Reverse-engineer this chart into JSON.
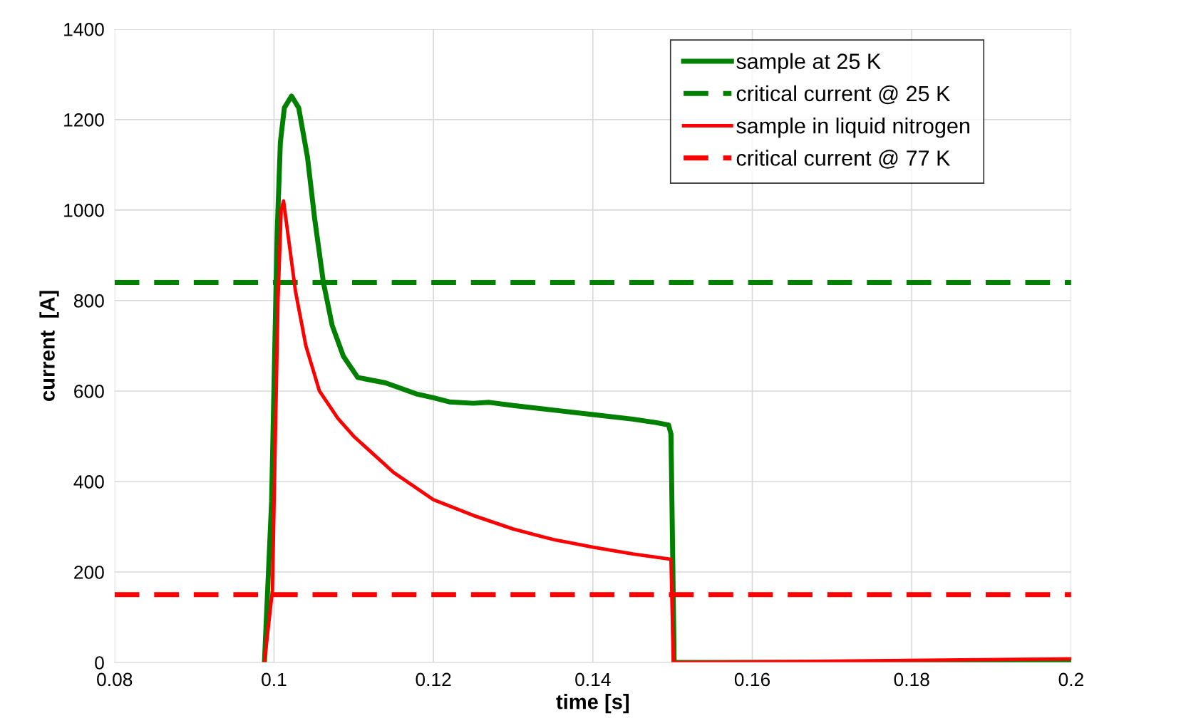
{
  "chart_data": {
    "type": "line",
    "xlabel": "time [s]",
    "ylabel": "current  [A]",
    "xlim": [
      0.08,
      0.2
    ],
    "xticks": [
      0.08,
      0.1,
      0.12,
      0.14,
      0.16,
      0.18,
      0.2
    ],
    "ylim": [
      0,
      1400
    ],
    "yticks": [
      0,
      200,
      400,
      600,
      800,
      1000,
      1200,
      1400
    ],
    "grid": true,
    "legend": "top right",
    "marker": "none",
    "series": [
      {
        "name": "sample at 25 K",
        "color": "#008000",
        "line_style": "solid",
        "x": [
          0.0988,
          0.0997,
          0.1004,
          0.1008,
          0.1013,
          0.1022,
          0.1031,
          0.1042,
          0.1051,
          0.1062,
          0.1073,
          0.1087,
          0.1105,
          0.114,
          0.118,
          0.12,
          0.122,
          0.125,
          0.127,
          0.13,
          0.135,
          0.14,
          0.145,
          0.148,
          0.1495,
          0.1498,
          0.1502,
          0.2
        ],
        "values": [
          0,
          356,
          950,
          1150,
          1226,
          1252,
          1226,
          1117,
          981,
          840,
          745,
          677,
          630,
          618,
          593,
          585,
          576,
          573,
          575,
          568,
          558,
          548,
          538,
          530,
          525,
          505,
          0,
          0
        ]
      },
      {
        "name": "critical current @ 25 K",
        "color": "#008000",
        "line_style": "dashed",
        "x": [
          0.08,
          0.2
        ],
        "values": [
          840,
          840
        ]
      },
      {
        "name": "sample in liquid nitrogen",
        "color": "#ff0000",
        "line_style": "solid",
        "x": [
          0.0988,
          0.0998,
          0.1005,
          0.1009,
          0.1012,
          0.1018,
          0.1027,
          0.104,
          0.1057,
          0.108,
          0.11,
          0.115,
          0.12,
          0.125,
          0.13,
          0.135,
          0.14,
          0.145,
          0.1498,
          0.1501,
          0.17,
          0.2
        ],
        "values": [
          0,
          160,
          800,
          1000,
          1020,
          940,
          820,
          700,
          600,
          540,
          500,
          420,
          360,
          325,
          295,
          272,
          255,
          240,
          228,
          0,
          3,
          8
        ]
      },
      {
        "name": "critical current @ 77 K",
        "color": "#ff0000",
        "line_style": "dashed",
        "x": [
          0.08,
          0.2
        ],
        "values": [
          150,
          150
        ]
      }
    ]
  }
}
